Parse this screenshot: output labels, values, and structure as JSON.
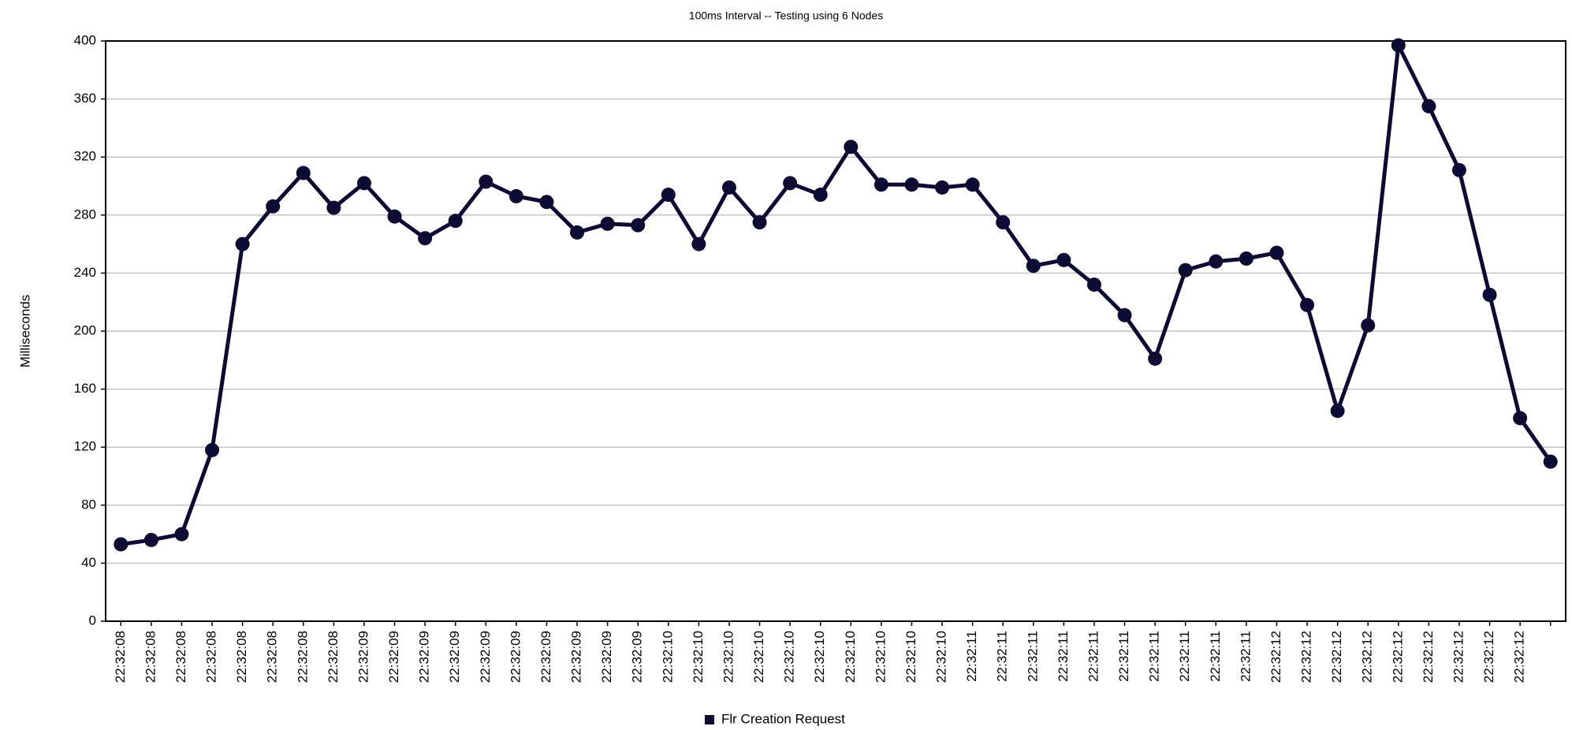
{
  "chart_data": {
    "type": "line",
    "title": "100ms Interval -- Testing using 6 Nodes",
    "y_label": "Milliseconds",
    "categories": [
      "22:32:08",
      "22:32:08",
      "22:32:08",
      "22:32:08",
      "22:32:08",
      "22:32:08",
      "22:32:08",
      "22:32:08",
      "22:32:09",
      "22:32:09",
      "22:32:09",
      "22:32:09",
      "22:32:09",
      "22:32:09",
      "22:32:09",
      "22:32:09",
      "22:32:09",
      "22:32:09",
      "22:32:10",
      "22:32:10",
      "22:32:10",
      "22:32:10",
      "22:32:10",
      "22:32:10",
      "22:32:10",
      "22:32:10",
      "22:32:10",
      "22:32:10",
      "22:32:11",
      "22:32:11",
      "22:32:11",
      "22:32:11",
      "22:32:11",
      "22:32:11",
      "22:32:11",
      "22:32:11",
      "22:32:11",
      "22:32:11",
      "22:32:12",
      "22:32:12",
      "22:32:12",
      "22:32:12",
      "22:32:12",
      "22:32:12",
      "22:32:12",
      "22:32:12",
      "22:32:12",
      null
    ],
    "series": [
      {
        "name": "Flr Creation Request",
        "color": "#0d0b33",
        "values": [
          53,
          56,
          60,
          118,
          260,
          286,
          309,
          285,
          302,
          279,
          264,
          276,
          303,
          293,
          289,
          268,
          274,
          273,
          294,
          260,
          299,
          275,
          302,
          294,
          327,
          301,
          301,
          299,
          301,
          275,
          245,
          249,
          232,
          211,
          181,
          242,
          248,
          250,
          254,
          218,
          145,
          204,
          397,
          355,
          311,
          225,
          140,
          110
        ]
      }
    ],
    "ylim": [
      0,
      400
    ],
    "yticks": [
      0,
      40,
      80,
      120,
      160,
      200,
      240,
      280,
      320,
      360,
      400
    ],
    "grid": true,
    "legend": "bottom"
  }
}
